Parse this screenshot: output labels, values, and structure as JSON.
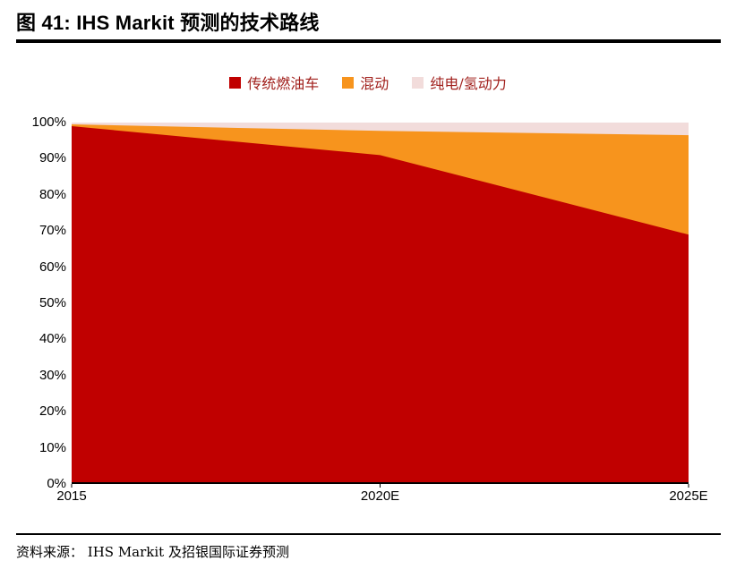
{
  "title": "图 41: IHS Markit 预测的技术路线",
  "source": "资料来源： IHS Markit 及招银国际证券预测",
  "colors": {
    "title_rule": "#000000",
    "legend_text": "#A1201C",
    "axis_line": "#000000"
  },
  "chart_data": {
    "type": "area",
    "stacked": true,
    "unit": "%",
    "title": "IHS Markit 预测的技术路线",
    "x": [
      "2015",
      "2020E",
      "2025E"
    ],
    "series": [
      {
        "name": "传统燃油车",
        "color": "#C00000",
        "values": [
          99,
          91,
          69
        ]
      },
      {
        "name": "混动",
        "color": "#F7941D",
        "values": [
          0.5,
          6.7,
          27.5
        ]
      },
      {
        "name": "纯电/氢动力",
        "color": "#F2DCDB",
        "values": [
          0.5,
          2.3,
          3.5
        ]
      }
    ],
    "ylim": [
      0,
      100
    ],
    "yticks": [
      0,
      10,
      20,
      30,
      40,
      50,
      60,
      70,
      80,
      90,
      100
    ],
    "legend_position": "top",
    "grid": false
  }
}
